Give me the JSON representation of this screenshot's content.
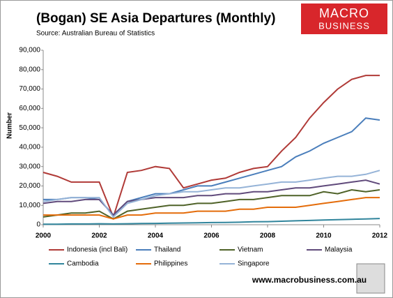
{
  "brand": {
    "logo_top": "MACRO",
    "logo_bottom": "BUSINESS",
    "url": "www.macrobusiness.com.au"
  },
  "chart_data": {
    "type": "line",
    "title": "(Bogan) SE Asia Departures (Monthly)",
    "subtitle": "Source: Australian Bureau of Statistics",
    "y_label": "Number",
    "x": [
      2000,
      2000.5,
      2001,
      2001.5,
      2002,
      2002.5,
      2003,
      2003.5,
      2004,
      2004.5,
      2005,
      2005.5,
      2006,
      2006.5,
      2007,
      2007.5,
      2008,
      2008.5,
      2009,
      2009.5,
      2010,
      2010.5,
      2011,
      2011.5,
      2012
    ],
    "xlim": [
      2000,
      2012
    ],
    "xticks": [
      2000,
      2002,
      2004,
      2006,
      2008,
      2010,
      2012
    ],
    "ylim": [
      0,
      90000
    ],
    "yticks": [
      0,
      {
        "value": 10000,
        "label": "10,000"
      },
      {
        "value": 20000,
        "label": "20,000"
      },
      {
        "value": 30000,
        "label": "30,000"
      },
      {
        "value": 40000,
        "label": "40,000"
      },
      {
        "value": 50000,
        "label": "50,000"
      },
      {
        "value": 60000,
        "label": "60,000"
      },
      {
        "value": 70000,
        "label": "70,000"
      },
      {
        "value": 80000,
        "label": "80,000"
      },
      {
        "value": 90000,
        "label": "90,000"
      }
    ],
    "grid": false,
    "series": [
      {
        "name": "Indonesia (incl Bali)",
        "color": "#b03a37",
        "values": [
          27000,
          25000,
          22000,
          22000,
          22000,
          4000,
          27000,
          28000,
          30000,
          29000,
          19000,
          21000,
          23000,
          24000,
          27000,
          29000,
          30000,
          38000,
          45000,
          55000,
          63000,
          70000,
          75000,
          77000,
          77000
        ]
      },
      {
        "name": "Thailand",
        "color": "#4a7ebb",
        "values": [
          13000,
          13000,
          14000,
          14000,
          13000,
          5000,
          12000,
          14000,
          16000,
          16000,
          18000,
          20000,
          20000,
          22000,
          24000,
          26000,
          28000,
          30000,
          35000,
          38000,
          42000,
          45000,
          48000,
          55000,
          54000
        ]
      },
      {
        "name": "Vietnam",
        "color": "#4f6228",
        "values": [
          4000,
          5000,
          6000,
          6000,
          7000,
          3000,
          7000,
          8000,
          9000,
          10000,
          10000,
          11000,
          11000,
          12000,
          13000,
          13000,
          14000,
          15000,
          15000,
          15000,
          17000,
          16000,
          18000,
          17000,
          18000
        ]
      },
      {
        "name": "Malaysia",
        "color": "#604a7b",
        "values": [
          11000,
          12000,
          12000,
          13000,
          13000,
          5000,
          12000,
          13000,
          14000,
          14000,
          14000,
          15000,
          15000,
          16000,
          16000,
          17000,
          17000,
          18000,
          19000,
          19000,
          20000,
          21000,
          22000,
          23000,
          21000
        ]
      },
      {
        "name": "Cambodia",
        "color": "#31859c",
        "values": [
          300,
          300,
          400,
          400,
          500,
          400,
          500,
          600,
          700,
          800,
          900,
          1000,
          1100,
          1200,
          1300,
          1500,
          1600,
          1800,
          2000,
          2200,
          2400,
          2600,
          2800,
          3000,
          3200
        ]
      },
      {
        "name": "Philippines",
        "color": "#e46c0a",
        "values": [
          5000,
          5000,
          5000,
          5000,
          5000,
          3000,
          5000,
          5000,
          6000,
          6000,
          6000,
          7000,
          7000,
          7000,
          8000,
          8000,
          9000,
          9000,
          9000,
          10000,
          11000,
          12000,
          13000,
          14000,
          14000
        ]
      },
      {
        "name": "Singapore",
        "color": "#95b3d7",
        "values": [
          12000,
          13000,
          14000,
          14000,
          14000,
          4000,
          11000,
          13000,
          15000,
          16000,
          17000,
          17000,
          18000,
          19000,
          19000,
          20000,
          21000,
          22000,
          22000,
          23000,
          24000,
          25000,
          25000,
          26000,
          28000
        ]
      }
    ]
  }
}
